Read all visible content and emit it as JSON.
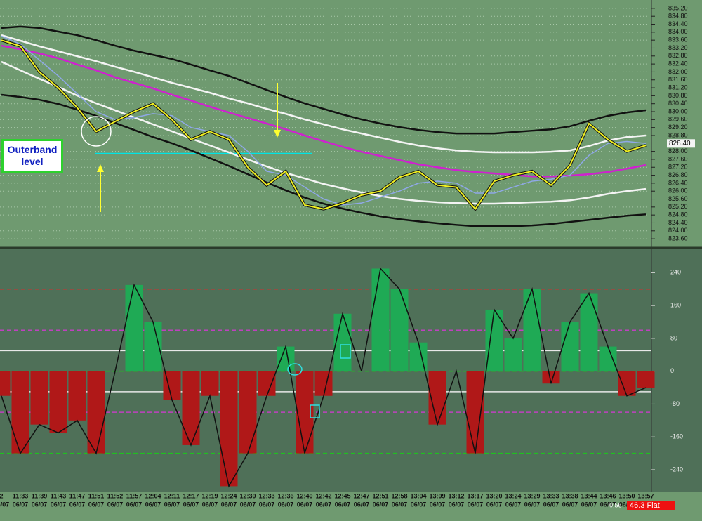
{
  "chart_data": [
    {
      "type": "line",
      "categories": [
        "2",
        "11:33",
        "11:39",
        "11:43",
        "11:47",
        "11:51",
        "11:52",
        "11:57",
        "12:04",
        "12:11",
        "12:17",
        "12:19",
        "12:24",
        "12:30",
        "12:33",
        "12:36",
        "12:40",
        "12:42",
        "12:45",
        "12:47",
        "12:51",
        "12:58",
        "13:04",
        "13:09",
        "13:12",
        "13:17",
        "13:20",
        "13:24",
        "13:29",
        "13:33",
        "13:38",
        "13:44",
        "13:46",
        "13:50",
        "13:57"
      ],
      "dates": [
        "06/07",
        "06/07",
        "06/07",
        "06/07",
        "06/07",
        "06/07",
        "06/07",
        "06/07",
        "06/07",
        "06/07",
        "06/07",
        "06/07",
        "06/07",
        "06/07",
        "06/07",
        "06/07",
        "06/07",
        "06/07",
        "06/07",
        "06/07",
        "06/07",
        "06/07",
        "06/07",
        "06/07",
        "06/07",
        "06/07",
        "06/07",
        "06/07",
        "06/07",
        "06/07",
        "06/07",
        "06/07",
        "06/07",
        "06/07",
        "06/07"
      ],
      "annotation": "Outerband level",
      "level_line": {
        "value": 827.9,
        "color": "#00e5e5"
      },
      "last_price": {
        "value": 828.4,
        "label": "828.40"
      },
      "grid": true,
      "ylim": [
        823.18,
        835.62
      ],
      "yticks": [
        {
          "value": 835.2,
          "label": "835.20"
        },
        {
          "value": 834.8,
          "label": "834.80"
        },
        {
          "value": 834.4,
          "label": "834.40"
        },
        {
          "value": 834.0,
          "label": "834.00"
        },
        {
          "value": 833.6,
          "label": "833.60"
        },
        {
          "value": 833.2,
          "label": "833.20"
        },
        {
          "value": 832.8,
          "label": "832.80"
        },
        {
          "value": 832.4,
          "label": "832.40"
        },
        {
          "value": 832.0,
          "label": "832.00"
        },
        {
          "value": 831.6,
          "label": "831.60"
        },
        {
          "value": 831.2,
          "label": "831.20"
        },
        {
          "value": 830.8,
          "label": "830.80"
        },
        {
          "value": 830.4,
          "label": "830.40"
        },
        {
          "value": 830.0,
          "label": "830.00"
        },
        {
          "value": 829.6,
          "label": "829.60"
        },
        {
          "value": 829.2,
          "label": "829.20"
        },
        {
          "value": 828.8,
          "label": "828.80"
        },
        {
          "value": 828.0,
          "label": "828.00"
        },
        {
          "value": 827.6,
          "label": "827.60"
        },
        {
          "value": 827.2,
          "label": "827.20"
        },
        {
          "value": 826.8,
          "label": "826.80"
        },
        {
          "value": 826.4,
          "label": "826.40"
        },
        {
          "value": 826.0,
          "label": "826.00"
        },
        {
          "value": 825.6,
          "label": "825.60"
        },
        {
          "value": 825.2,
          "label": "825.20"
        },
        {
          "value": 824.8,
          "label": "824.80"
        },
        {
          "value": 824.4,
          "label": "824.40"
        },
        {
          "value": 824.0,
          "label": "824.00"
        },
        {
          "value": 823.6,
          "label": "823.60"
        }
      ],
      "series": [
        {
          "color": "#111111",
          "values": [
            834.21,
            834.28,
            834.21,
            834.03,
            833.85,
            833.6,
            833.32,
            833.07,
            832.86,
            832.65,
            832.37,
            832.08,
            831.8,
            831.45,
            831.09,
            830.74,
            830.42,
            830.14,
            829.86,
            829.61,
            829.4,
            829.22,
            829.08,
            828.97,
            828.9,
            828.9,
            828.9,
            828.97,
            829.04,
            829.11,
            829.26,
            829.54,
            829.79,
            829.96,
            830.07
          ]
        },
        {
          "color": "#f4f4f4",
          "values": [
            833.85,
            833.57,
            833.29,
            833.04,
            832.79,
            832.54,
            832.26,
            832.01,
            831.73,
            831.45,
            831.2,
            830.95,
            830.67,
            830.42,
            830.14,
            829.89,
            829.61,
            829.36,
            829.11,
            828.9,
            828.69,
            828.48,
            828.3,
            828.16,
            828.05,
            827.98,
            827.95,
            827.95,
            827.95,
            827.98,
            828.05,
            828.27,
            828.55,
            828.72,
            828.8
          ]
        },
        {
          "color": "#d020d0",
          "values": [
            833.32,
            833.14,
            832.93,
            832.69,
            832.37,
            832.08,
            831.73,
            831.45,
            831.17,
            830.85,
            830.56,
            830.25,
            829.96,
            829.68,
            829.4,
            829.11,
            828.8,
            828.51,
            828.23,
            827.98,
            827.77,
            827.56,
            827.35,
            827.2,
            827.06,
            826.96,
            826.89,
            826.82,
            826.74,
            826.74,
            826.78,
            826.85,
            826.96,
            827.13,
            827.31
          ]
        },
        {
          "color": "#f4f4f4",
          "values": [
            832.51,
            832.08,
            831.66,
            831.24,
            830.81,
            830.42,
            830.07,
            829.71,
            829.36,
            829.01,
            828.65,
            828.3,
            827.95,
            827.59,
            827.24,
            826.92,
            826.64,
            826.36,
            826.14,
            825.93,
            825.75,
            825.61,
            825.51,
            825.44,
            825.4,
            825.37,
            825.37,
            825.4,
            825.44,
            825.47,
            825.54,
            825.68,
            825.86,
            826.0,
            826.11
          ]
        },
        {
          "color": "#111111",
          "values": [
            830.85,
            830.74,
            830.6,
            830.39,
            830.1,
            829.79,
            829.43,
            829.08,
            828.72,
            828.41,
            828.05,
            827.66,
            827.27,
            826.85,
            826.43,
            826.04,
            825.68,
            825.37,
            825.12,
            824.91,
            824.73,
            824.59,
            824.48,
            824.38,
            824.3,
            824.23,
            824.23,
            824.23,
            824.27,
            824.34,
            824.45,
            824.55,
            824.66,
            824.76,
            824.83
          ]
        },
        {
          "color": "#8fa8e8",
          "values": [
            833.8,
            833.4,
            832.6,
            831.8,
            830.9,
            830.0,
            829.6,
            829.7,
            829.9,
            829.8,
            829.2,
            829.0,
            828.8,
            828.0,
            827.0,
            826.8,
            826.2,
            825.6,
            825.3,
            825.4,
            825.7,
            826.0,
            826.4,
            826.5,
            826.4,
            825.9,
            825.9,
            826.2,
            826.5,
            826.6,
            826.8,
            827.8,
            828.4,
            828.5,
            828.4
          ]
        },
        {
          "color": "#f0f020",
          "values": [
            833.6,
            833.3,
            832.0,
            831.2,
            830.2,
            829.0,
            829.5,
            830.0,
            830.4,
            829.6,
            828.6,
            829.0,
            828.6,
            827.2,
            826.3,
            827.0,
            825.3,
            825.1,
            825.4,
            825.8,
            826.0,
            826.7,
            827.0,
            826.3,
            826.2,
            825.1,
            826.5,
            826.8,
            827.0,
            826.3,
            827.3,
            829.4,
            828.6,
            828.0,
            828.3
          ]
        }
      ]
    },
    {
      "type": "bar",
      "positive_color": "#1faa55",
      "negative_color": "#b01818",
      "ylim": [
        -293,
        297
      ],
      "yticks": [
        240,
        160,
        80,
        0,
        -80,
        -160,
        -240
      ],
      "levels": [
        {
          "value": 200,
          "color": "#d03030"
        },
        {
          "value": 100,
          "color": "#c040c0"
        },
        {
          "value": 50,
          "color": "#e8e8e8"
        },
        {
          "value": 0,
          "color": "#20c020"
        },
        {
          "value": -50,
          "color": "#e8e8e8"
        },
        {
          "value": -100,
          "color": "#c040c0"
        },
        {
          "value": -200,
          "color": "#20c020"
        }
      ],
      "values": [
        -60,
        -200,
        -130,
        -150,
        -120,
        -200,
        0,
        210,
        120,
        -70,
        -180,
        -60,
        -280,
        -200,
        -60,
        60,
        -200,
        -60,
        140,
        0,
        250,
        200,
        70,
        -130,
        0,
        -200,
        150,
        80,
        200,
        -30,
        120,
        190,
        60,
        -60,
        -40
      ]
    }
  ],
  "status": {
    "timer": "0:56",
    "position": "46.3 Flat"
  }
}
